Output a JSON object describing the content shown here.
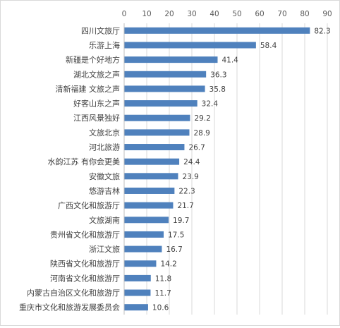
{
  "chart_data": {
    "type": "bar",
    "orientation": "horizontal",
    "categories": [
      "四川文旅厅",
      "乐游上海",
      "新疆是个好地方",
      "湖北文旅之声",
      "清新福建 文旅之声",
      "好客山东之声",
      "江西风景独好",
      "文旅北京",
      "河北旅游",
      "水韵江苏 有你会更美",
      "安徽文旅",
      "悠游吉林",
      "广西文化和旅游厅",
      "文旅湖南",
      "贵州省文化和旅游厅",
      "浙江文旅",
      "陕西省文化和旅游厅",
      "河南省文化和旅游厅",
      "内蒙古自治区文化和旅游厅",
      "重庆市文化和旅游发展委员会"
    ],
    "values": [
      82.3,
      58.4,
      41.4,
      36.3,
      35.8,
      32.4,
      29.2,
      28.9,
      26.7,
      24.4,
      23.9,
      22.3,
      21.7,
      19.7,
      17.5,
      16.7,
      14.2,
      11.8,
      11.7,
      10.6
    ],
    "value_labels": [
      "82.3",
      "58.4",
      "41.4",
      "36.3",
      "35.8",
      "32.4",
      "29.2",
      "28.9",
      "26.7",
      "24.4",
      "23.9",
      "22.3",
      "21.7",
      "19.7",
      "17.5",
      "16.7",
      "14.2",
      "11.8",
      "11.7",
      "10.6"
    ],
    "xlim": [
      0,
      90
    ],
    "ticks": [
      "0",
      "10",
      "20",
      "30",
      "40",
      "50",
      "60",
      "70",
      "80",
      "90"
    ],
    "axis_position": "top",
    "grid": true,
    "legend": "none",
    "colors": {
      "bar": "#4f81bd",
      "grid": "#d9d9d9",
      "axis": "#bfbfbf"
    }
  }
}
